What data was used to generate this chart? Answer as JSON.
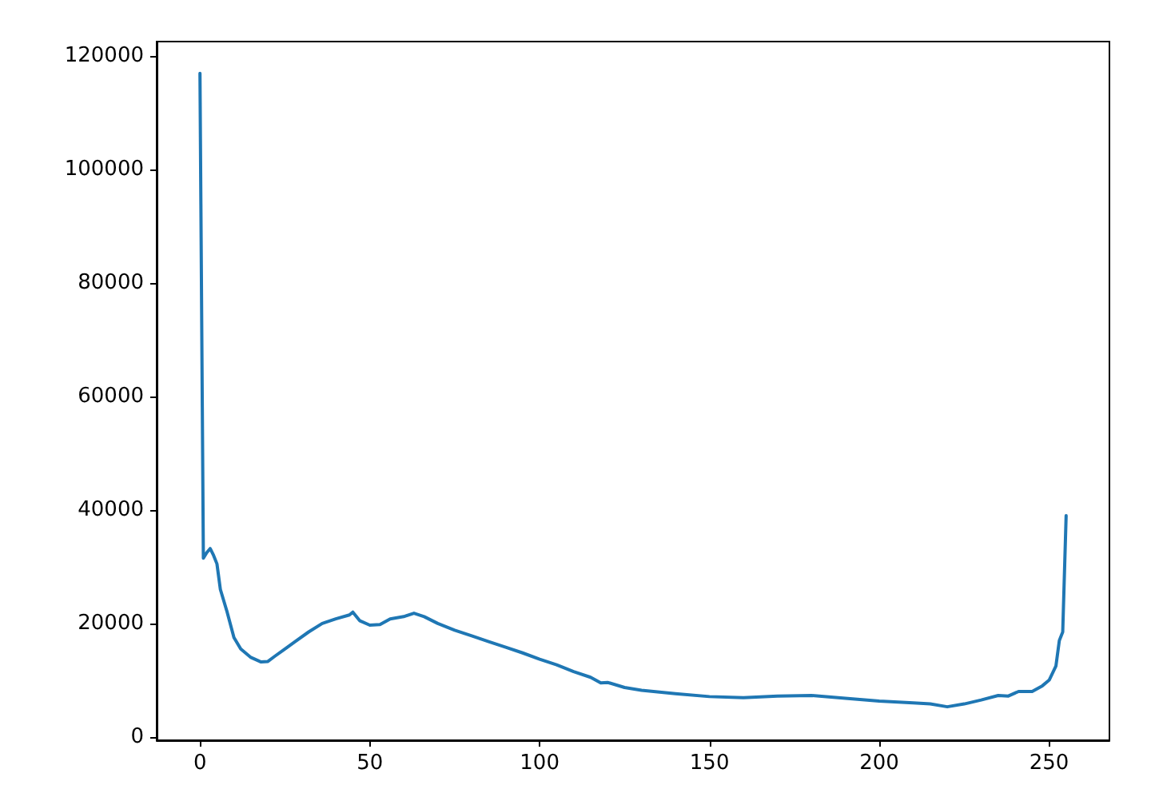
{
  "chart_data": {
    "type": "line",
    "grid": false,
    "marker": "none",
    "line_style": "solid",
    "x": [
      0,
      1,
      2,
      3,
      4,
      5,
      6,
      8,
      10,
      12,
      15,
      18,
      20,
      22,
      25,
      28,
      32,
      36,
      40,
      44,
      45,
      47,
      50,
      53,
      56,
      60,
      63,
      66,
      70,
      75,
      80,
      85,
      90,
      95,
      100,
      105,
      110,
      115,
      118,
      120,
      125,
      130,
      140,
      150,
      160,
      170,
      180,
      190,
      200,
      210,
      215,
      220,
      225,
      230,
      235,
      238,
      241,
      245,
      248,
      250,
      252,
      253,
      254,
      255
    ],
    "series": [
      {
        "color": "#1f77b4",
        "values": [
          117000,
          31500,
          32500,
          33200,
          32000,
          30500,
          26000,
          22000,
          17500,
          15500,
          14000,
          13200,
          13300,
          14200,
          15500,
          16800,
          18500,
          20000,
          20800,
          21500,
          22000,
          20500,
          19700,
          19800,
          20800,
          21200,
          21800,
          21200,
          20000,
          18800,
          17800,
          16800,
          15800,
          14800,
          13700,
          12700,
          11500,
          10500,
          9500,
          9600,
          8700,
          8200,
          7600,
          7100,
          6900,
          7200,
          7300,
          6800,
          6300,
          6000,
          5800,
          5300,
          5800,
          6500,
          7300,
          7200,
          8000,
          8000,
          9000,
          10000,
          12500,
          17000,
          18500,
          39000
        ]
      }
    ],
    "xlim": [
      -12.75,
      267.75
    ],
    "ylim": [
      -600,
      122600
    ],
    "xticks": [
      0,
      50,
      100,
      150,
      200,
      250
    ],
    "yticks": [
      0,
      20000,
      40000,
      60000,
      80000,
      100000,
      120000
    ]
  }
}
